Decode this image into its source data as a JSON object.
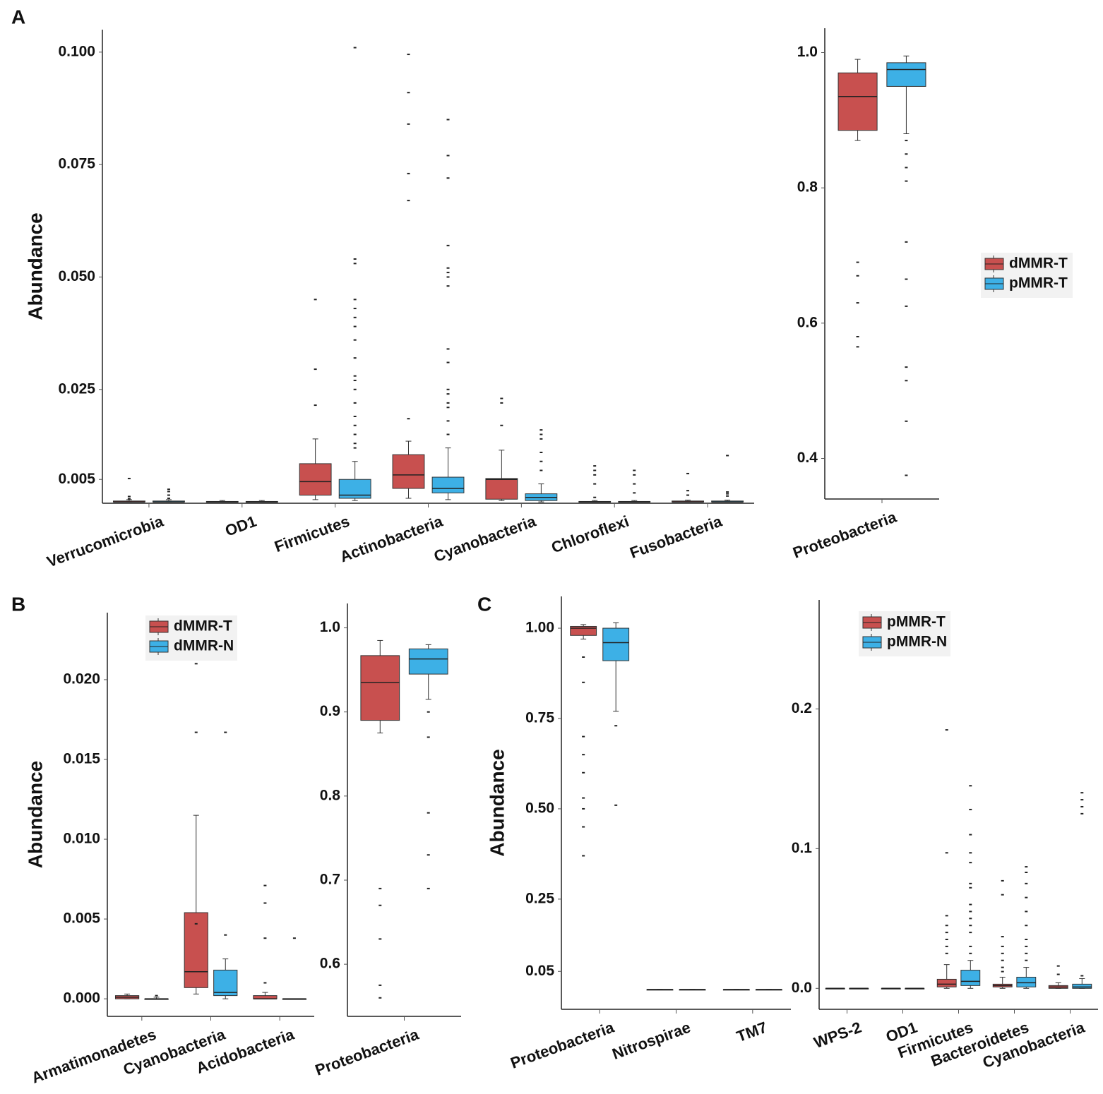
{
  "panel_labels": [
    "A",
    "B",
    "C"
  ],
  "chart_data": [
    {
      "type": "box",
      "ylabel": "Abundance",
      "categories": [
        "Verrucomicrobia",
        "OD1",
        "Firmicutes",
        "Actinobacteria",
        "Cyanobacteria",
        "Chloroflexi",
        "Fusobacteria"
      ],
      "ylim": [
        -0.0003,
        0.105
      ],
      "yticks": [
        {
          "value": 0.1,
          "label": "0.100"
        },
        0.075,
        {
          "value": 0.05,
          "label": "0.050"
        },
        0.025,
        0.005
      ],
      "series": [
        {
          "name": "dMMR-T",
          "color": "#c8504f",
          "values": [
            {
              "min": 0,
              "q1": 0,
              "median": 0,
              "q3": 0.0002,
              "max": 0.0005,
              "outliers": [
                0.0052,
                0.0012,
                0.0007
              ]
            },
            {
              "min": 0,
              "q1": 0,
              "median": 0,
              "q3": 0.0001,
              "max": 0.0003,
              "outliers": []
            },
            {
              "min": 0.0005,
              "q1": 0.0015,
              "median": 0.0045,
              "q3": 0.0085,
              "max": 0.014,
              "outliers": [
                0.045,
                0.0295,
                0.0215
              ]
            },
            {
              "min": 0.0008,
              "q1": 0.003,
              "median": 0.006,
              "q3": 0.0105,
              "max": 0.0135,
              "outliers": [
                0.0995,
                0.091,
                0.084,
                0.073,
                0.067,
                0.0185
              ]
            },
            {
              "min": 0.0003,
              "q1": 0.0006,
              "median": 0.005,
              "q3": 0.0052,
              "max": 0.0115,
              "outliers": [
                0.023,
                0.022,
                0.017
              ]
            },
            {
              "min": 0,
              "q1": 0,
              "median": 0,
              "q3": 0.0001,
              "max": 0.0003,
              "outliers": [
                0.008,
                0.007,
                0.006,
                0.004,
                0.001
              ]
            },
            {
              "min": 0,
              "q1": 0,
              "median": 0,
              "q3": 0.0002,
              "max": 0.0004,
              "outliers": [
                0.0063,
                0.0025,
                0.0015
              ]
            }
          ]
        },
        {
          "name": "pMMR-T",
          "color": "#3db0e6",
          "values": [
            {
              "min": 0,
              "q1": 0,
              "median": 0,
              "q3": 0.0002,
              "max": 0.0005,
              "outliers": [
                0.0028,
                0.0023,
                0.0015,
                0.0008
              ]
            },
            {
              "min": 0,
              "q1": 0,
              "median": 0,
              "q3": 0.0001,
              "max": 0.0003,
              "outliers": []
            },
            {
              "min": 0.0003,
              "q1": 0.0008,
              "median": 0.0015,
              "q3": 0.005,
              "max": 0.009,
              "outliers": [
                0.101,
                0.054,
                0.053,
                0.045,
                0.043,
                0.041,
                0.039,
                0.036,
                0.032,
                0.028,
                0.027,
                0.025,
                0.022,
                0.019,
                0.017,
                0.015,
                0.013,
                0.012
              ]
            },
            {
              "min": 0.0005,
              "q1": 0.002,
              "median": 0.003,
              "q3": 0.0055,
              "max": 0.012,
              "outliers": [
                0.085,
                0.077,
                0.072,
                0.057,
                0.052,
                0.051,
                0.05,
                0.048,
                0.034,
                0.031,
                0.025,
                0.024,
                0.022,
                0.021,
                0.018,
                0.015
              ]
            },
            {
              "min": 0,
              "q1": 0.0003,
              "median": 0.001,
              "q3": 0.0018,
              "max": 0.004,
              "outliers": [
                0.016,
                0.015,
                0.014,
                0.011,
                0.009,
                0.007
              ]
            },
            {
              "min": 0,
              "q1": 0,
              "median": 0,
              "q3": 0.0001,
              "max": 0.0003,
              "outliers": [
                0.007,
                0.006,
                0.004,
                0.002
              ]
            },
            {
              "min": 0,
              "q1": 0,
              "median": 0,
              "q3": 0.0002,
              "max": 0.0004,
              "outliers": [
                0.0103,
                0.0022,
                0.0018,
                0.0013
              ]
            }
          ]
        }
      ]
    },
    {
      "type": "box",
      "legend": "right",
      "categories": [
        "Proteobacteria"
      ],
      "ylim": [
        0.34,
        1.036
      ],
      "yticks": [
        {
          "value": 1.0,
          "label": "1.0"
        },
        0.8,
        0.6,
        0.4
      ],
      "series": [
        {
          "name": "dMMR-T",
          "color": "#c8504f",
          "values": [
            {
              "min": 0.87,
              "q1": 0.885,
              "median": 0.935,
              "q3": 0.97,
              "max": 0.99,
              "outliers": [
                0.69,
                0.67,
                0.63,
                0.58,
                0.565
              ]
            }
          ]
        },
        {
          "name": "pMMR-T",
          "color": "#3db0e6",
          "values": [
            {
              "min": 0.88,
              "q1": 0.95,
              "median": 0.975,
              "q3": 0.985,
              "max": 0.995,
              "outliers": [
                0.87,
                0.85,
                0.83,
                0.81,
                0.72,
                0.665,
                0.625,
                0.535,
                0.515,
                0.455,
                0.375
              ]
            }
          ]
        }
      ]
    },
    {
      "type": "box",
      "ylabel": "Abundance",
      "legend": "top",
      "categories": [
        "Armatimonadetes",
        "Cyanobacteria",
        "Acidobacteria"
      ],
      "ylim": [
        -0.0011,
        0.0242
      ],
      "yticks": [
        {
          "value": 0.02,
          "label": "0.020"
        },
        0.015,
        {
          "value": 0.01,
          "label": "0.010"
        },
        0.005,
        {
          "value": 0,
          "label": "0.000"
        }
      ],
      "series": [
        {
          "name": "dMMR-T",
          "color": "#c8504f",
          "values": [
            {
              "min": 0,
              "q1": 0,
              "median": 0.0001,
              "q3": 0.0002,
              "max": 0.0003,
              "outliers": []
            },
            {
              "min": 0.0003,
              "q1": 0.0007,
              "median": 0.0017,
              "q3": 0.0054,
              "max": 0.0115,
              "outliers": [
                0.021,
                0.0167,
                0.0047
              ]
            },
            {
              "min": 0,
              "q1": 0,
              "median": 0,
              "q3": 0.0002,
              "max": 0.0004,
              "outliers": [
                0.0071,
                0.006,
                0.0038,
                0.001
              ]
            }
          ]
        },
        {
          "name": "dMMR-N",
          "color": "#3db0e6",
          "values": [
            {
              "min": 0,
              "q1": 0,
              "median": 0,
              "q3": 0,
              "max": 0.0001,
              "outliers": [
                0.0002
              ]
            },
            {
              "min": 0,
              "q1": 0.0002,
              "median": 0.0004,
              "q3": 0.0018,
              "max": 0.0025,
              "outliers": [
                0.0167,
                0.004
              ]
            },
            {
              "min": 0,
              "q1": 0,
              "median": 0,
              "q3": 0,
              "max": 0,
              "outliers": [
                0.0038
              ]
            }
          ]
        }
      ]
    },
    {
      "type": "box",
      "categories": [
        "Proteobacteria"
      ],
      "ylim": [
        0.538,
        1.029
      ],
      "yticks": [
        {
          "value": 1.0,
          "label": "1.0"
        },
        0.9,
        0.8,
        0.7,
        0.6
      ],
      "series": [
        {
          "name": "dMMR-T",
          "color": "#c8504f",
          "values": [
            {
              "min": 0.875,
              "q1": 0.89,
              "median": 0.935,
              "q3": 0.967,
              "max": 0.985,
              "outliers": [
                0.69,
                0.67,
                0.63,
                0.575,
                0.56
              ]
            }
          ]
        },
        {
          "name": "dMMR-N",
          "color": "#3db0e6",
          "values": [
            {
              "min": 0.915,
              "q1": 0.945,
              "median": 0.963,
              "q3": 0.975,
              "max": 0.98,
              "outliers": [
                0.9,
                0.87,
                0.78,
                0.73,
                0.69
              ]
            }
          ]
        }
      ]
    },
    {
      "type": "box",
      "ylabel": "Abundance",
      "categories": [
        "Proteobacteria",
        "Nitrospirae",
        "TM7"
      ],
      "ylim": [
        -0.055,
        1.088
      ],
      "yticks": [
        {
          "value": 1.0,
          "label": "1.00"
        },
        0.75,
        {
          "value": 0.5,
          "label": "0.50"
        },
        0.25,
        0.05
      ],
      "series": [
        {
          "name": "pMMR-T",
          "color": "#c8504f",
          "values": [
            {
              "min": 0.97,
              "q1": 0.98,
              "median": 1.0,
              "q3": 1.005,
              "max": 1.01,
              "outliers": [
                0.92,
                0.85,
                0.7,
                0.65,
                0.6,
                0.53,
                0.5,
                0.45,
                0.37
              ]
            },
            {
              "min": 0,
              "q1": 0,
              "median": 0,
              "q3": 0,
              "max": 0,
              "outliers": []
            },
            {
              "min": 0,
              "q1": 0,
              "median": 0,
              "q3": 0,
              "max": 0,
              "outliers": []
            }
          ]
        },
        {
          "name": "pMMR-N",
          "color": "#3db0e6",
          "values": [
            {
              "min": 0.77,
              "q1": 0.91,
              "median": 0.96,
              "q3": 1.0,
              "max": 1.015,
              "outliers": [
                0.73,
                0.51
              ]
            },
            {
              "min": 0,
              "q1": 0,
              "median": 0,
              "q3": 0,
              "max": 0,
              "outliers": []
            },
            {
              "min": 0,
              "q1": 0,
              "median": 0,
              "q3": 0,
              "max": 0,
              "outliers": []
            }
          ]
        }
      ]
    },
    {
      "type": "box",
      "legend": "top-left",
      "categories": [
        "WPS-2",
        "OD1",
        "Firmicutes",
        "Bacteroidetes",
        "Cyanobacteria"
      ],
      "ylim": [
        -0.015,
        0.278
      ],
      "yticks": [
        0.2,
        0.1,
        {
          "value": 0,
          "label": "0.0"
        }
      ],
      "series": [
        {
          "name": "pMMR-T",
          "color": "#c8504f",
          "values": [
            {
              "min": 0,
              "q1": 0,
              "median": 0,
              "q3": 0,
              "max": 0,
              "outliers": []
            },
            {
              "min": 0,
              "q1": 0,
              "median": 0,
              "q3": 0,
              "max": 0,
              "outliers": []
            },
            {
              "min": 0,
              "q1": 0.001,
              "median": 0.003,
              "q3": 0.0065,
              "max": 0.017,
              "outliers": [
                0.185,
                0.097,
                0.052,
                0.045,
                0.04,
                0.035,
                0.03,
                0.025
              ]
            },
            {
              "min": 0,
              "q1": 0.001,
              "median": 0.002,
              "q3": 0.003,
              "max": 0.008,
              "outliers": [
                0.077,
                0.067,
                0.037,
                0.03,
                0.025,
                0.02,
                0.015,
                0.012
              ]
            },
            {
              "min": 0,
              "q1": 0,
              "median": 0.001,
              "q3": 0.002,
              "max": 0.004,
              "outliers": [
                0.016,
                0.01
              ]
            }
          ]
        },
        {
          "name": "pMMR-N",
          "color": "#3db0e6",
          "values": [
            {
              "min": 0,
              "q1": 0,
              "median": 0,
              "q3": 0,
              "max": 0,
              "outliers": []
            },
            {
              "min": 0,
              "q1": 0,
              "median": 0,
              "q3": 0,
              "max": 0,
              "outliers": []
            },
            {
              "min": 0,
              "q1": 0.002,
              "median": 0.005,
              "q3": 0.013,
              "max": 0.02,
              "outliers": [
                0.145,
                0.128,
                0.11,
                0.097,
                0.09,
                0.075,
                0.072,
                0.06,
                0.055,
                0.05,
                0.045,
                0.04,
                0.03,
                0.025
              ]
            },
            {
              "min": 0,
              "q1": 0.001,
              "median": 0.004,
              "q3": 0.008,
              "max": 0.015,
              "outliers": [
                0.087,
                0.083,
                0.075,
                0.065,
                0.055,
                0.045,
                0.035,
                0.03,
                0.025,
                0.02
              ]
            },
            {
              "min": 0,
              "q1": 0,
              "median": 0.001,
              "q3": 0.003,
              "max": 0.007,
              "outliers": [
                0.009,
                0.14,
                0.135,
                0.13,
                0.125
              ]
            }
          ]
        }
      ]
    }
  ]
}
